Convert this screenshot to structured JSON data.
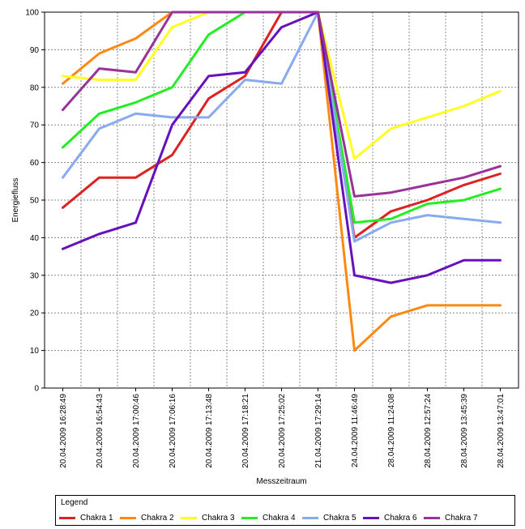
{
  "chart_data": {
    "type": "line",
    "title": "",
    "xlabel": "Messzeitraum",
    "ylabel": "Energiefluss",
    "ylim": [
      0,
      100
    ],
    "yticks": [
      0,
      10,
      20,
      30,
      40,
      50,
      60,
      70,
      80,
      90,
      100
    ],
    "grid": true,
    "legend_position": "bottom",
    "legend_title": "Legend",
    "categories": [
      "20.04.2009 16:28:49",
      "20.04.2009 16:54:43",
      "20.04.2009 17:00:46",
      "20.04.2009 17:06:16",
      "20.04.2009 17:13:48",
      "20.04.2009 17:18:21",
      "20.04.2009 17:25:02",
      "21.04.2009 17:29:14",
      "24.04.2009 11:46:49",
      "28.04.2009 11:24:08",
      "28.04.2009 12:57:24",
      "28.04.2009 13:45:39",
      "28.04.2009 13:47:01"
    ],
    "series": [
      {
        "name": "Chakra 1",
        "color": "#dd2222",
        "values": [
          48,
          56,
          56,
          62,
          77,
          83,
          100,
          100,
          40,
          47,
          50,
          54,
          57
        ]
      },
      {
        "name": "Chakra 2",
        "color": "#ff8811",
        "values": [
          81,
          89,
          93,
          100,
          100,
          100,
          100,
          100,
          10,
          19,
          22,
          22,
          22
        ]
      },
      {
        "name": "Chakra 3",
        "color": "#ffff22",
        "values": [
          83,
          82,
          82,
          96,
          100,
          100,
          100,
          100,
          61,
          69,
          72,
          75,
          79
        ]
      },
      {
        "name": "Chakra 4",
        "color": "#22ee22",
        "values": [
          64,
          73,
          76,
          80,
          94,
          100,
          100,
          100,
          44,
          45,
          49,
          50,
          53
        ]
      },
      {
        "name": "Chakra 5",
        "color": "#88aaee",
        "values": [
          56,
          69,
          73,
          72,
          72,
          82,
          81,
          100,
          39,
          44,
          46,
          45,
          44
        ]
      },
      {
        "name": "Chakra 6",
        "color": "#6611bb",
        "values": [
          37,
          41,
          44,
          70,
          83,
          84,
          96,
          100,
          30,
          28,
          30,
          34,
          34
        ]
      },
      {
        "name": "Chakra 7",
        "color": "#993399",
        "values": [
          74,
          85,
          84,
          100,
          100,
          100,
          100,
          100,
          51,
          52,
          54,
          56,
          59
        ]
      }
    ]
  }
}
